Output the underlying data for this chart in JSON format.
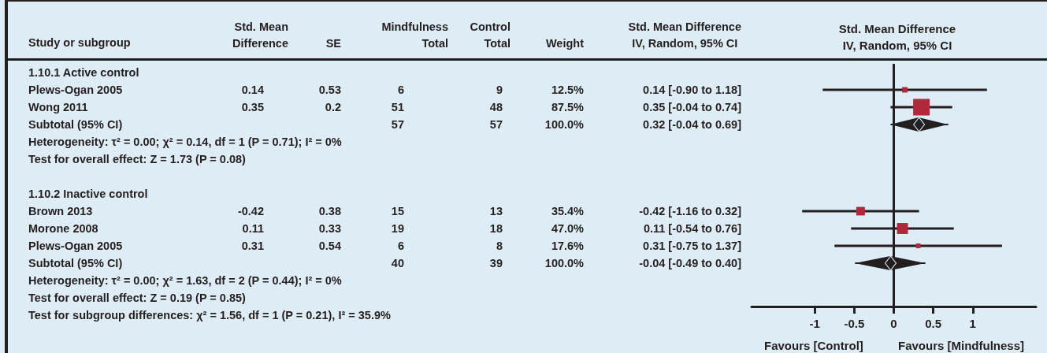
{
  "chart_data": [
    {
      "type": "other",
      "ylabel": "Study or subgroup",
      "categories": [
        "Std. Mean\nDifference",
        "SE",
        "Mindfulness\nTotal",
        "Control\nTotal",
        "Weight",
        "Std. Mean Difference\nIV, Random, 95% CI"
      ],
      "y_categories": [
        "1.10.1 Active control",
        "Plews-Ogan 2005",
        "Wong 2011",
        "Subtotal (95% CI)",
        "Heterogeneity: τ² = 0.00; χ² = 0.14, df = 1 (P = 0.71); I² = 0%",
        "Test for overall effect: Z = 1.73 (P = 0.08)",
        null,
        "1.10.2 Inactive control",
        "Brown 2013",
        "Morone 2008",
        "Plews-Ogan 2005",
        "Subtotal (95% CI)",
        "Heterogeneity: τ² = 0.00; χ² = 1.63, df = 2 (P = 0.44); I² = 0%",
        "Test for overall effect: Z = 0.19 (P = 0.85)",
        "Test for subgroup differences: χ² = 1.56, df = 1 (P = 0.21), I² = 35.9%"
      ],
      "cell_labels": [
        [
          null,
          null,
          null,
          null,
          null,
          null
        ],
        [
          "0.14",
          "0.53",
          "6",
          "9",
          "12.5%",
          "0.14 [-0.90 to 1.18]"
        ],
        [
          "0.35",
          "0.2",
          "51",
          "48",
          "87.5%",
          "0.35 [-0.04 to 0.74]"
        ],
        [
          null,
          null,
          "57",
          "57",
          "100.0%",
          "0.32 [-0.04 to 0.69]"
        ],
        [
          null,
          null,
          null,
          null,
          null,
          null
        ],
        [
          null,
          null,
          null,
          null,
          null,
          null
        ],
        [
          null,
          null,
          null,
          null,
          null,
          null
        ],
        [
          null,
          null,
          null,
          null,
          null,
          null
        ],
        [
          "-0.42",
          "0.38",
          "15",
          "13",
          "35.4%",
          "-0.42 [-1.16 to 0.32]"
        ],
        [
          "0.11",
          "0.33",
          "19",
          "18",
          "47.0%",
          "0.11 [-0.54 to 0.76]"
        ],
        [
          "0.31",
          "0.54",
          "6",
          "8",
          "17.6%",
          "0.31 [-0.75 to 1.37]"
        ],
        [
          null,
          null,
          "40",
          "39",
          "100.0%",
          "-0.04 [-0.49 to 0.40]"
        ],
        [
          null,
          null,
          null,
          null,
          null,
          null
        ],
        [
          null,
          null,
          null,
          null,
          null,
          null
        ],
        [
          null,
          null,
          null,
          null,
          null,
          null
        ]
      ]
    },
    {
      "type": "scatter",
      "title": "Std. Mean Difference",
      "subtitle": "IV, Random, 95% CI",
      "orientation": "horizontal",
      "tick_labels": "x",
      "categories": [
        null,
        null,
        null,
        null,
        null,
        null,
        null,
        null,
        null,
        null,
        null,
        null,
        null,
        null
      ],
      "xlim": [
        -1.8,
        1.8
      ],
      "xticks": [
        -1,
        -0.5,
        0,
        0.5,
        1
      ],
      "series": [
        {
          "marker": "square",
          "color": "#b0283a",
          "values": [
            null,
            0.14,
            0.35,
            null,
            null,
            null,
            null,
            null,
            -0.42,
            0.11,
            0.31,
            null,
            null,
            null
          ],
          "errors": [
            null,
            [
              -0.9,
              1.18
            ],
            [
              -0.04,
              0.74
            ],
            null,
            null,
            null,
            null,
            null,
            [
              -1.16,
              0.32
            ],
            [
              -0.54,
              0.76
            ],
            [
              -0.75,
              1.37
            ],
            null,
            null,
            null
          ],
          "sizes": [
            null,
            0.11,
            1,
            null,
            null,
            null,
            null,
            null,
            0.27,
            0.44,
            0.08,
            null,
            null,
            null
          ]
        },
        {
          "marker": "diamond",
          "color": "#231f20",
          "values": [
            null,
            null,
            null,
            0.32,
            null,
            null,
            null,
            null,
            null,
            null,
            null,
            -0.04,
            null,
            null
          ],
          "errors": [
            null,
            null,
            null,
            [
              -0.04,
              0.69
            ],
            null,
            null,
            null,
            null,
            null,
            null,
            null,
            [
              -0.49,
              0.4
            ],
            null,
            null
          ]
        }
      ],
      "ref_lines": [
        {
          "axis": "x",
          "value": 0,
          "color": "#231f20"
        }
      ],
      "annotations": [
        "Favours [Control]",
        "Favours [Mindfulness]"
      ]
    }
  ]
}
